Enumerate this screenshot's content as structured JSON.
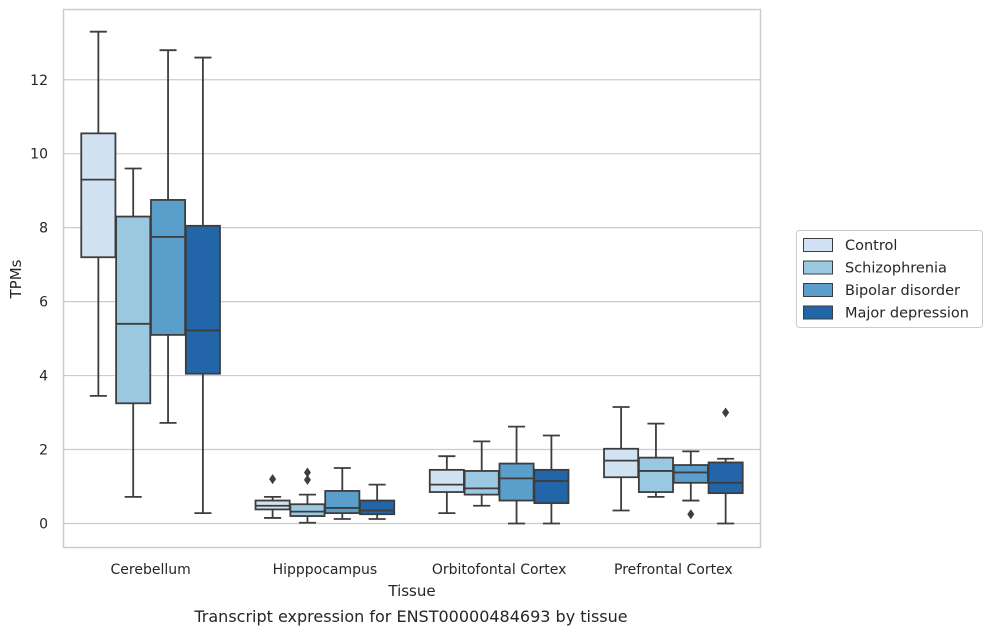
{
  "caption": "Transcript expression for ENST00000484693 by tissue",
  "chart_data": {
    "type": "box",
    "xlabel": "Tissue",
    "ylabel": "TPMs",
    "ylim": [
      -0.65,
      13.9
    ],
    "yticks": [
      0,
      2,
      4,
      6,
      8,
      10,
      12
    ],
    "grid": "horizontal",
    "legend_position": "right",
    "categories": [
      "Cerebellum",
      "Hipppocampus",
      "Orbitofontal Cortex",
      "Prefrontal Cortex"
    ],
    "series": [
      {
        "name": "Control",
        "color": "#d1e2f2",
        "boxes": [
          {
            "whisker_low": 3.45,
            "q1": 7.2,
            "median": 9.3,
            "q3": 10.55,
            "whisker_high": 13.3,
            "outliers": []
          },
          {
            "whisker_low": 0.15,
            "q1": 0.38,
            "median": 0.48,
            "q3": 0.62,
            "whisker_high": 0.72,
            "outliers": [
              1.2
            ]
          },
          {
            "whisker_low": 0.28,
            "q1": 0.85,
            "median": 1.05,
            "q3": 1.45,
            "whisker_high": 1.82,
            "outliers": []
          },
          {
            "whisker_low": 0.35,
            "q1": 1.25,
            "median": 1.7,
            "q3": 2.02,
            "whisker_high": 3.15,
            "outliers": []
          }
        ]
      },
      {
        "name": "Schizophrenia",
        "color": "#9ac8e0",
        "boxes": [
          {
            "whisker_low": 0.72,
            "q1": 3.25,
            "median": 5.4,
            "q3": 8.3,
            "whisker_high": 9.6,
            "outliers": []
          },
          {
            "whisker_low": 0.02,
            "q1": 0.2,
            "median": 0.32,
            "q3": 0.52,
            "whisker_high": 0.78,
            "outliers": [
              1.18,
              1.38
            ]
          },
          {
            "whisker_low": 0.48,
            "q1": 0.78,
            "median": 0.95,
            "q3": 1.42,
            "whisker_high": 2.22,
            "outliers": []
          },
          {
            "whisker_low": 0.72,
            "q1": 0.85,
            "median": 1.42,
            "q3": 1.78,
            "whisker_high": 2.7,
            "outliers": []
          }
        ]
      },
      {
        "name": "Bipolar disorder",
        "color": "#5a9fcb",
        "boxes": [
          {
            "whisker_low": 2.72,
            "q1": 5.1,
            "median": 7.75,
            "q3": 8.75,
            "whisker_high": 12.8,
            "outliers": []
          },
          {
            "whisker_low": 0.12,
            "q1": 0.28,
            "median": 0.42,
            "q3": 0.88,
            "whisker_high": 1.5,
            "outliers": []
          },
          {
            "whisker_low": 0.0,
            "q1": 0.62,
            "median": 1.22,
            "q3": 1.62,
            "whisker_high": 2.62,
            "outliers": []
          },
          {
            "whisker_low": 0.62,
            "q1": 1.1,
            "median": 1.38,
            "q3": 1.58,
            "whisker_high": 1.95,
            "outliers": [
              0.25
            ]
          }
        ]
      },
      {
        "name": "Major depression",
        "color": "#2265a8",
        "boxes": [
          {
            "whisker_low": 0.28,
            "q1": 4.05,
            "median": 5.22,
            "q3": 8.05,
            "whisker_high": 12.6,
            "outliers": []
          },
          {
            "whisker_low": 0.12,
            "q1": 0.25,
            "median": 0.35,
            "q3": 0.62,
            "whisker_high": 1.05,
            "outliers": []
          },
          {
            "whisker_low": 0.0,
            "q1": 0.55,
            "median": 1.15,
            "q3": 1.45,
            "whisker_high": 2.38,
            "outliers": []
          },
          {
            "whisker_low": 0.0,
            "q1": 0.82,
            "median": 1.1,
            "q3": 1.65,
            "whisker_high": 1.75,
            "outliers": [
              3.0
            ]
          }
        ]
      }
    ]
  }
}
